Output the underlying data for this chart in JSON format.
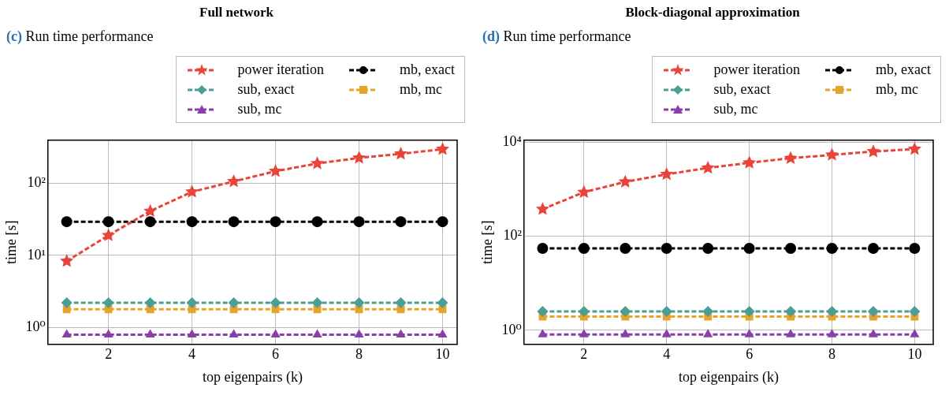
{
  "chart_data": [
    {
      "type": "line",
      "title": "Full network",
      "subtitle": "(c) Run time performance",
      "xlabel": "top eigenpairs (k)",
      "ylabel": "time [s]",
      "log": "y",
      "grid": true,
      "legend": "top",
      "line_style": "dashed",
      "xlim": [
        0.55,
        10.35
      ],
      "xticks": [
        2,
        4,
        6,
        8,
        10
      ],
      "ylim": [
        0.58,
        396
      ],
      "yticks": [
        {
          "value": 1,
          "label": "10⁰"
        },
        {
          "value": 10,
          "label": "10¹"
        },
        {
          "value": 100,
          "label": "10²"
        }
      ],
      "x": [
        1,
        2,
        3,
        4,
        5,
        6,
        7,
        8,
        9,
        10
      ],
      "series": [
        {
          "name": "power iteration",
          "color": "#e8443a",
          "marker": "star",
          "values": [
            8.3,
            18.9,
            41,
            76,
            106,
            147,
            188,
            225,
            256,
            297
          ]
        },
        {
          "name": "mb, exact",
          "color": "#000000",
          "marker": "circle",
          "values": [
            29.3,
            29.3,
            29.3,
            29.3,
            29.3,
            29.3,
            29.3,
            29.3,
            29.3,
            29.3
          ]
        },
        {
          "name": "sub, exact",
          "color": "#4a9e96",
          "marker": "diamond",
          "values": [
            2.2,
            2.2,
            2.2,
            2.2,
            2.2,
            2.2,
            2.2,
            2.2,
            2.2,
            2.2
          ]
        },
        {
          "name": "mb, mc",
          "color": "#e6a52a",
          "marker": "square",
          "values": [
            1.78,
            1.78,
            1.78,
            1.78,
            1.78,
            1.78,
            1.78,
            1.78,
            1.78,
            1.78
          ]
        },
        {
          "name": "sub, mc",
          "color": "#8a3fa8",
          "marker": "triangle",
          "values": [
            0.79,
            0.79,
            0.79,
            0.79,
            0.79,
            0.79,
            0.79,
            0.79,
            0.79,
            0.79
          ]
        }
      ]
    },
    {
      "type": "line",
      "title": "Block-diagonal approximation",
      "subtitle": "(d) Run time performance",
      "xlabel": "top eigenpairs (k)",
      "ylabel": "time [s]",
      "log": "y",
      "grid": true,
      "legend": "top",
      "line_style": "dashed",
      "xlim": [
        0.55,
        10.45
      ],
      "xticks": [
        2,
        4,
        6,
        8,
        10
      ],
      "ylim": [
        0.5,
        11000
      ],
      "yticks": [
        {
          "value": 1,
          "label": "10⁰"
        },
        {
          "value": 100,
          "label": "10²"
        },
        {
          "value": 10000,
          "label": "10⁴"
        }
      ],
      "x": [
        1,
        2,
        3,
        4,
        5,
        6,
        7,
        8,
        9,
        10
      ],
      "series": [
        {
          "name": "power iteration",
          "color": "#e8443a",
          "marker": "star",
          "values": [
            375,
            861,
            1430,
            2070,
            2830,
            3640,
            4550,
            5360,
            6310,
            7110
          ]
        },
        {
          "name": "mb, exact",
          "color": "#000000",
          "marker": "circle",
          "values": [
            55,
            55,
            55,
            55,
            55,
            55,
            55,
            55,
            55,
            55
          ]
        },
        {
          "name": "sub, exact",
          "color": "#4a9e96",
          "marker": "diamond",
          "values": [
            2.5,
            2.5,
            2.5,
            2.5,
            2.5,
            2.5,
            2.5,
            2.5,
            2.5,
            2.5
          ]
        },
        {
          "name": "mb, mc",
          "color": "#e6a52a",
          "marker": "square",
          "values": [
            1.95,
            1.95,
            1.95,
            1.95,
            1.95,
            1.95,
            1.95,
            1.95,
            1.95,
            1.95
          ]
        },
        {
          "name": "sub, mc",
          "color": "#8a3fa8",
          "marker": "triangle",
          "values": [
            0.81,
            0.81,
            0.81,
            0.81,
            0.81,
            0.81,
            0.81,
            0.81,
            0.81,
            0.81
          ]
        }
      ]
    }
  ]
}
